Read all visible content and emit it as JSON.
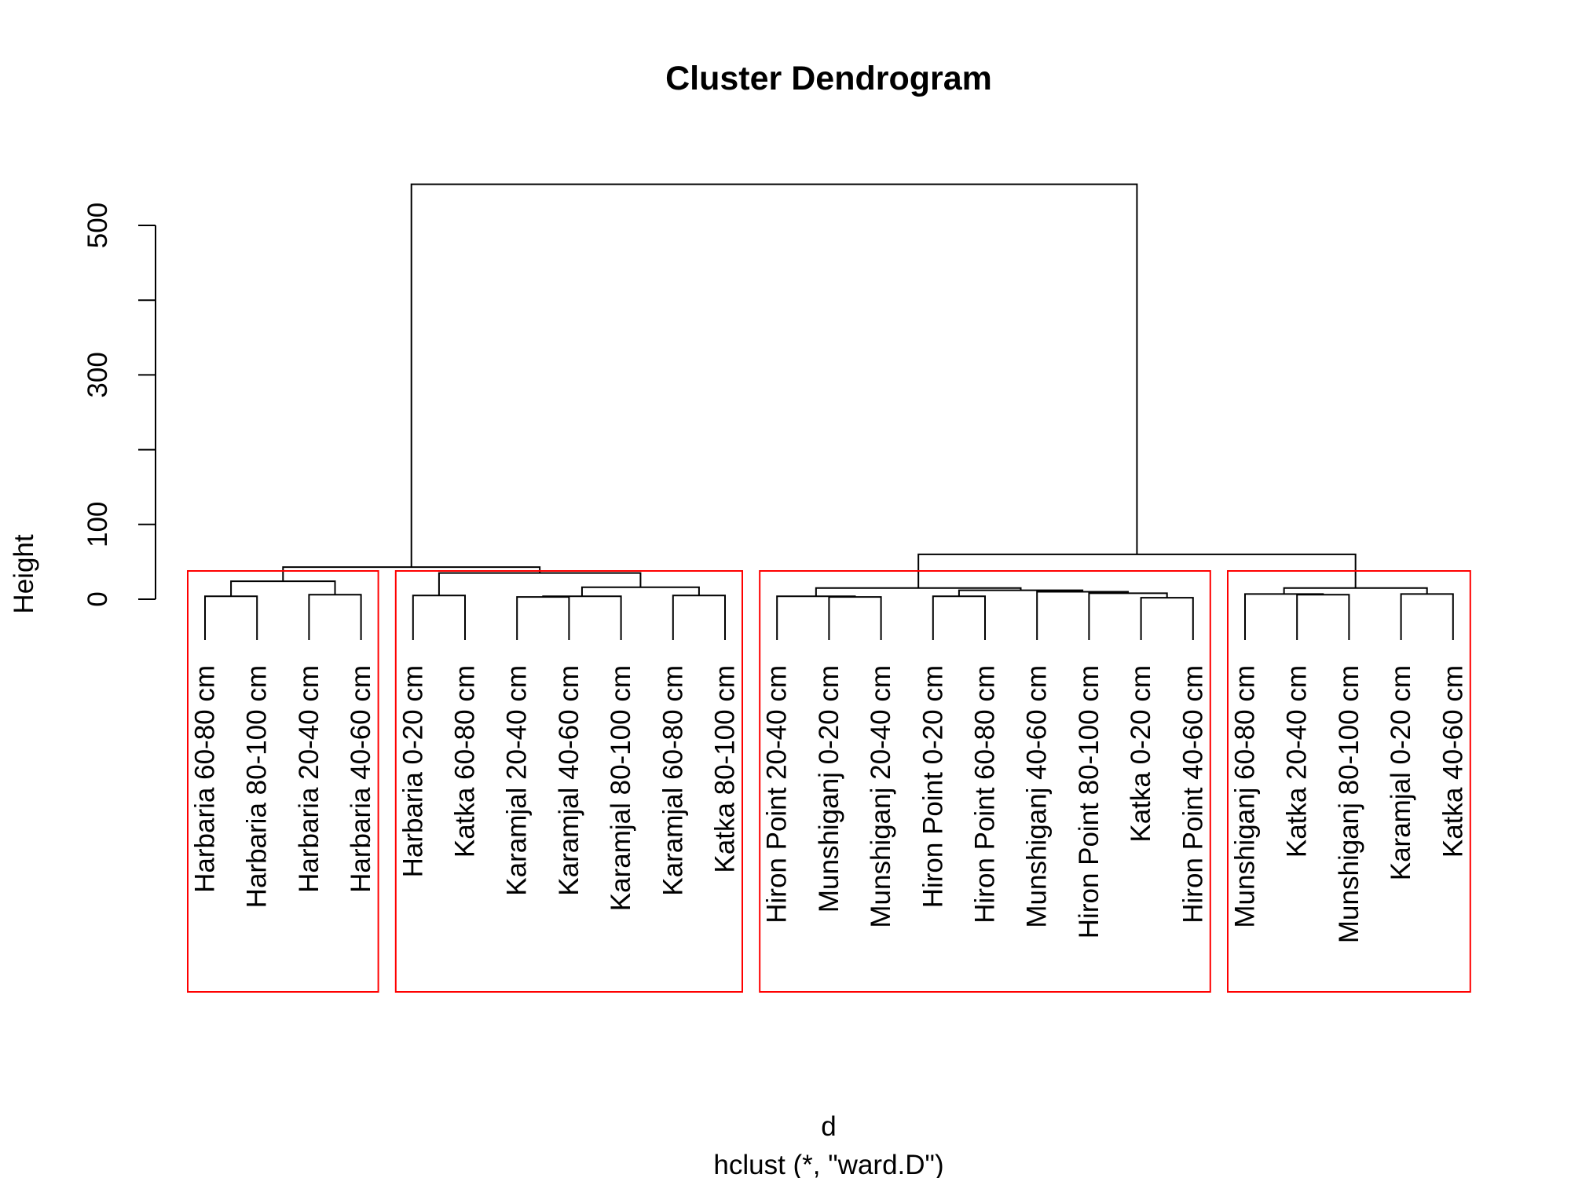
{
  "chart_data": {
    "type": "dendrogram",
    "title": "Cluster Dendrogram",
    "ylabel": "Height",
    "xlabel": "d",
    "sub": "hclust (*, \"ward.D\")",
    "y_ticks": [
      0,
      100,
      200,
      300,
      400,
      500
    ],
    "y_tick_labels": [
      "0",
      "100",
      "",
      "300",
      "",
      "500"
    ],
    "ylim": [
      0,
      600
    ],
    "leaves": [
      "Harbaria 60-80 cm",
      "Harbaria 80-100 cm",
      "Harbaria 20-40 cm",
      "Harbaria 40-60 cm",
      "Harbaria 0-20 cm",
      "Katka 60-80 cm",
      "Karamjal 20-40 cm",
      "Karamjal 40-60 cm",
      "Karamjal 80-100 cm",
      "Karamjal 60-80 cm",
      "Katka 80-100 cm",
      "Hiron Point 20-40 cm",
      "Munshiganj 0-20 cm",
      "Munshiganj 20-40 cm",
      "Hiron Point 0-20 cm",
      "Hiron Point 60-80 cm",
      "Munshiganj 40-60 cm",
      "Hiron Point 80-100 cm",
      "Katka 0-20 cm",
      "Hiron Point 40-60 cm",
      "Munshiganj 60-80 cm",
      "Katka 20-40 cm",
      "Munshiganj 80-100 cm",
      "Karamjal 0-20 cm",
      "Katka 40-60 cm"
    ],
    "merges": [
      [
        0,
        1,
        4
      ],
      [
        2,
        3,
        6
      ],
      [
        101,
        102,
        24
      ],
      [
        4,
        5,
        5
      ],
      [
        6,
        7,
        3
      ],
      [
        8,
        105,
        4
      ],
      [
        9,
        10,
        5
      ],
      [
        106,
        107,
        16
      ],
      [
        104,
        108,
        35
      ],
      [
        103,
        109,
        43
      ],
      [
        12,
        13,
        3
      ],
      [
        11,
        111,
        4
      ],
      [
        14,
        15,
        4
      ],
      [
        18,
        19,
        2
      ],
      [
        17,
        114,
        8
      ],
      [
        16,
        115,
        10
      ],
      [
        113,
        116,
        12
      ],
      [
        112,
        117,
        15
      ],
      [
        21,
        22,
        6
      ],
      [
        20,
        119,
        7
      ],
      [
        23,
        24,
        7
      ],
      [
        120,
        121,
        15
      ],
      [
        118,
        122,
        60
      ],
      [
        110,
        123,
        555
      ]
    ],
    "clusters_k": 4,
    "cluster_boxes": [
      [
        0,
        3
      ],
      [
        4,
        10
      ],
      [
        11,
        19
      ],
      [
        20,
        24
      ]
    ]
  }
}
